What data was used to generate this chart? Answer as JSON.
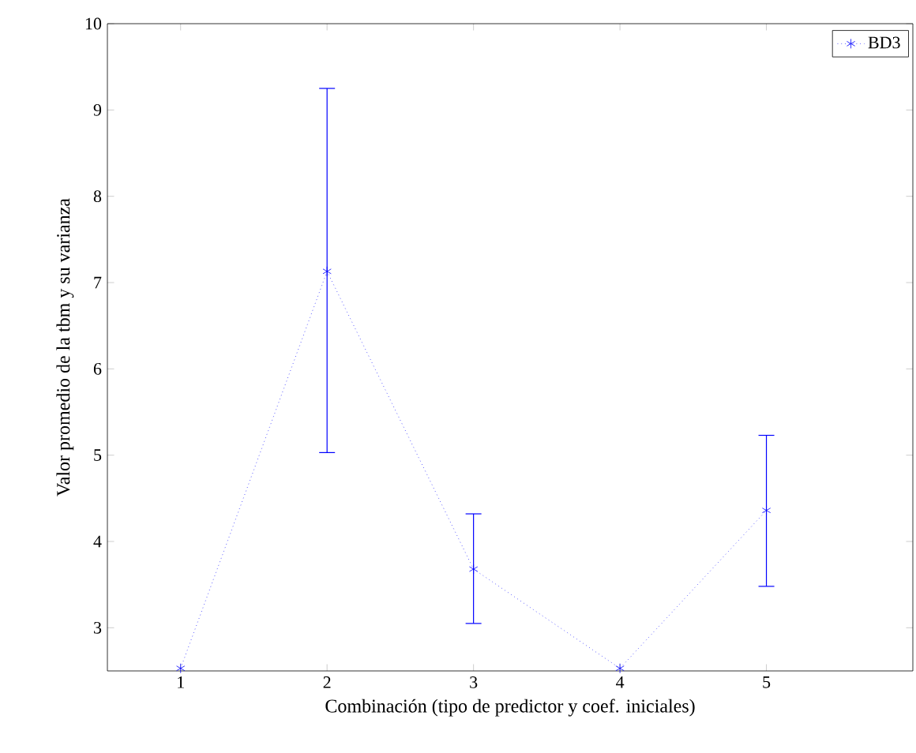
{
  "chart_data": {
    "type": "line",
    "xlabel": "Combinación (tipo de predictor y coef. iniciales)",
    "ylabel": "Valor promedio de la tbm y su varianza",
    "x": [
      1,
      2,
      3,
      4,
      5
    ],
    "series": [
      {
        "name": "BD3",
        "color": "#0000ff",
        "values": [
          2.53,
          7.13,
          3.68,
          2.53,
          4.36
        ],
        "errors": [
          null,
          [
            5.03,
            9.25
          ],
          [
            3.05,
            4.32
          ],
          null,
          [
            3.48,
            5.23
          ]
        ]
      }
    ],
    "xlim": [
      0.5,
      6
    ],
    "ylim": [
      2.5,
      10
    ],
    "xticks": [
      1,
      2,
      3,
      4,
      5
    ],
    "yticks": [
      3,
      4,
      5,
      6,
      7,
      8,
      9,
      10
    ],
    "grid": false,
    "legend": "top right",
    "marker": "cross",
    "line_style": "dotted"
  }
}
